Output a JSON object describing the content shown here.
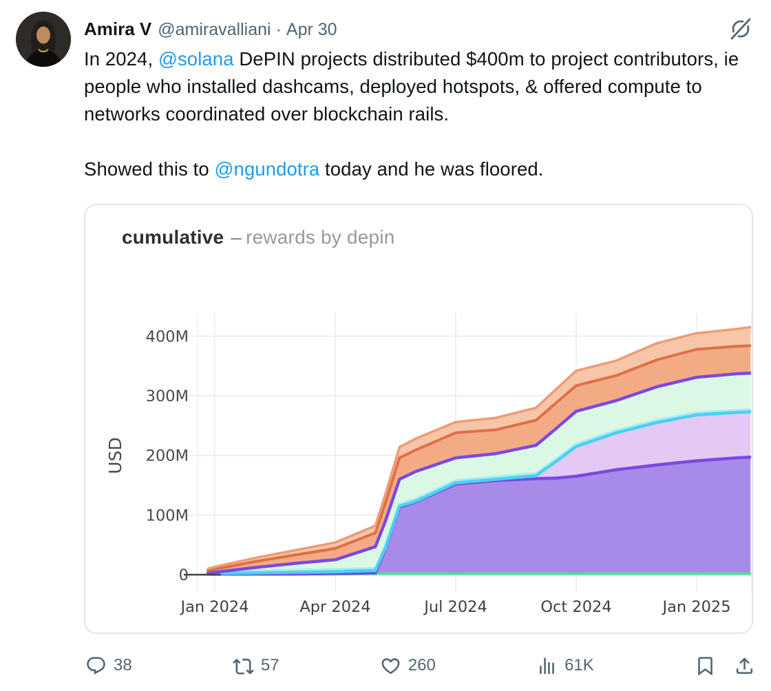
{
  "tweet": {
    "author_name": "Amira V",
    "author_handle": "@amiravalliani",
    "separator": "·",
    "date": "Apr 30",
    "body": {
      "p1_pre": "In 2024, ",
      "p1_link": "@solana",
      "p1_post": " DePIN projects distributed $400m to project contributors, ie people who installed dashcams, deployed hotspots, & offered compute to networks coordinated over blockchain rails.",
      "p2_pre": "Showed this to ",
      "p2_link": "@ngundotra",
      "p2_post": " today and he was floored."
    },
    "actions": {
      "reply_count": "38",
      "repost_count": "57",
      "like_count": "260",
      "view_count": "61K"
    },
    "icons": {
      "reply": "reply-bubble-icon",
      "repost": "repost-arrows-icon",
      "like": "heart-icon",
      "views": "bar-chart-icon",
      "bookmark": "bookmark-icon",
      "share": "share-upload-icon",
      "grok": "grok-slash-icon"
    },
    "link_color": "#1d9bf0",
    "secondary_color": "#536471"
  },
  "chart_data": {
    "type": "area",
    "stacked": true,
    "title_primary": "cumulative",
    "title_dash": "–",
    "title_secondary": "rewards by depin",
    "ylabel": "USD",
    "unit": "USD millions",
    "ylim": [
      0,
      430
    ],
    "grid": true,
    "legend": "none",
    "yticks": [
      {
        "label": "0",
        "value": 0
      },
      {
        "label": "100M",
        "value": 100
      },
      {
        "label": "200M",
        "value": 200
      },
      {
        "label": "300M",
        "value": 300
      },
      {
        "label": "400M",
        "value": 400
      }
    ],
    "xticks": [
      {
        "label": "Jan 2024",
        "month": 0
      },
      {
        "label": "Apr 2024",
        "month": 3
      },
      {
        "label": "Jul 2024",
        "month": 6
      },
      {
        "label": "Oct 2024",
        "month": 9
      },
      {
        "label": "Jan 2025",
        "month": 12
      }
    ],
    "edge_gridline_months": [
      -0.43,
      13.37
    ],
    "x_months": [
      -0.17,
      0,
      1,
      2,
      3,
      4,
      4.25,
      4.6,
      5,
      6,
      7,
      8,
      8.5,
      9,
      10,
      11,
      12,
      13,
      13.34
    ],
    "series_note": "values are cumulative stack boundaries in USD millions, bottom to top",
    "series": [
      {
        "name": "green-baseline",
        "line": "#55e19d",
        "halo": null,
        "fill": null,
        "lw": 4.0,
        "values": [
          1,
          1,
          1,
          1,
          1,
          1.5,
          1.5,
          1.5,
          1.5,
          1.5,
          1.5,
          1.5,
          1.5,
          1.5,
          1.5,
          1.5,
          1.5,
          1.5,
          1.5
        ]
      },
      {
        "name": "purple-solid",
        "line": "#7a49e2",
        "halo": null,
        "fill": "#a88ae9",
        "lw": 4.5,
        "values": [
          1,
          1,
          1,
          1,
          2,
          3,
          43,
          113,
          122,
          152,
          158,
          161,
          162,
          165,
          176,
          184,
          191,
          196,
          197
        ]
      },
      {
        "name": "lavender-cyan-top",
        "line": "#49d2f1",
        "halo": "#a9eaf5",
        "fill": "#e3c9f4",
        "lw": 4.5,
        "values": [
          2,
          2,
          3,
          4,
          5,
          7,
          45,
          115,
          123,
          154,
          160,
          166,
          190,
          215,
          238,
          255,
          268,
          272,
          273
        ]
      },
      {
        "name": "mint-purple-top",
        "line": "#7a49e2",
        "halo": null,
        "fill": "#daf8e4",
        "lw": 4.5,
        "values": [
          3,
          4,
          12,
          19,
          25,
          47,
          90,
          160,
          173,
          196,
          203,
          217,
          245,
          274,
          292,
          315,
          331,
          337,
          338
        ]
      },
      {
        "name": "orange-inner",
        "line": "#df6f47",
        "halo": null,
        "fill": "#f3ab85",
        "lw": 4.0,
        "values": [
          7,
          9,
          22,
          33,
          44,
          70,
          120,
          196,
          209,
          238,
          243,
          259,
          288,
          317,
          334,
          360,
          378,
          383,
          384
        ]
      },
      {
        "name": "orange-top",
        "line": "#ee9c74",
        "halo": null,
        "fill": "#f7c5a7",
        "lw": 3.5,
        "values": [
          10,
          13,
          28,
          41,
          54,
          82,
          135,
          214,
          228,
          256,
          263,
          280,
          311,
          342,
          359,
          388,
          405,
          412,
          415
        ]
      }
    ]
  }
}
